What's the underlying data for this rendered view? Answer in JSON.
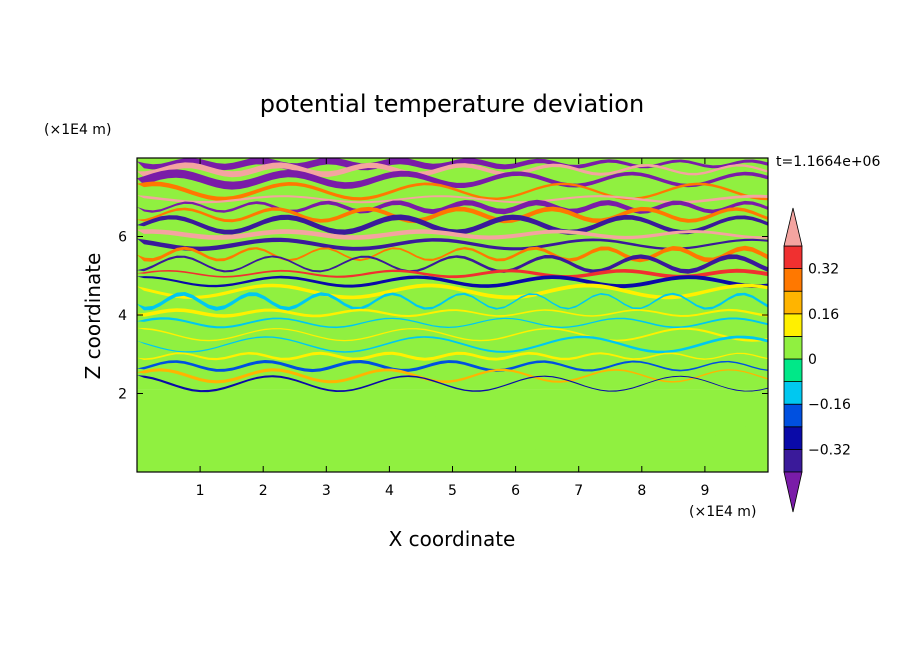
{
  "chart_data": {
    "type": "heatmap",
    "title": "potential temperature deviation",
    "xlabel": "X coordinate",
    "ylabel": "Z coordinate",
    "x_unit_label": "(×1E4 m)",
    "y_unit_label": "(×1E4 m)",
    "time_label": "t=1.1664e+06",
    "xlim": [
      0,
      10
    ],
    "ylim": [
      0,
      8
    ],
    "x_ticks": [
      1,
      2,
      3,
      4,
      5,
      6,
      7,
      8,
      9
    ],
    "y_ticks": [
      2,
      4,
      6
    ],
    "grid": false,
    "colorbar": {
      "levels": [
        -0.48,
        -0.4,
        -0.32,
        -0.24,
        -0.16,
        -0.08,
        0,
        0.08,
        0.16,
        0.24,
        0.32,
        0.4,
        0.48
      ],
      "colors": [
        "#7a1ca8",
        "#3a1a9a",
        "#0a0aa8",
        "#0050e0",
        "#00c8f0",
        "#00e888",
        "#90f040",
        "#fff000",
        "#ffb400",
        "#ff7800",
        "#f03030",
        "#f4a4a0"
      ],
      "tick_labels": [
        {
          "value": 0.32,
          "label": "0.32"
        },
        {
          "value": 0.16,
          "label": "0.16"
        },
        {
          "value": 0,
          "label": "0"
        },
        {
          "value": -0.16,
          "label": "−0.16"
        },
        {
          "value": -0.32,
          "label": "−0.32"
        }
      ]
    },
    "lower_layer": {
      "z_top": 2.1,
      "background_value": 0.02,
      "patch_value": 0.06
    },
    "bands": [
      {
        "z": 7.85,
        "v": -0.45,
        "h": 0.18
      },
      {
        "z": 7.7,
        "v": 0.45,
        "h": 0.15
      },
      {
        "z": 7.45,
        "v": -0.44,
        "h": 0.22
      },
      {
        "z": 7.15,
        "v": 0.25,
        "h": 0.15
      },
      {
        "z": 6.95,
        "v": 0.45,
        "h": 0.12
      },
      {
        "z": 6.75,
        "v": -0.42,
        "h": 0.14
      },
      {
        "z": 6.55,
        "v": 0.3,
        "h": 0.12
      },
      {
        "z": 6.3,
        "v": -0.35,
        "h": 0.14
      },
      {
        "z": 6.05,
        "v": 0.4,
        "h": 0.12
      },
      {
        "z": 5.8,
        "v": -0.4,
        "h": 0.12
      },
      {
        "z": 5.55,
        "v": 0.3,
        "h": 0.12
      },
      {
        "z": 5.3,
        "v": -0.36,
        "h": 0.12
      },
      {
        "z": 5.05,
        "v": 0.34,
        "h": 0.1
      },
      {
        "z": 4.85,
        "v": -0.3,
        "h": 0.1
      },
      {
        "z": 4.6,
        "v": 0.14,
        "h": 0.1
      },
      {
        "z": 4.35,
        "v": -0.12,
        "h": 0.1
      },
      {
        "z": 4.05,
        "v": 0.12,
        "h": 0.1
      },
      {
        "z": 3.8,
        "v": -0.1,
        "h": 0.08
      },
      {
        "z": 3.5,
        "v": 0.14,
        "h": 0.08
      },
      {
        "z": 3.25,
        "v": -0.14,
        "h": 0.08
      },
      {
        "z": 2.95,
        "v": 0.12,
        "h": 0.08
      },
      {
        "z": 2.7,
        "v": -0.2,
        "h": 0.08
      },
      {
        "z": 2.45,
        "v": 0.2,
        "h": 0.08
      },
      {
        "z": 2.25,
        "v": -0.28,
        "h": 0.06
      }
    ]
  }
}
